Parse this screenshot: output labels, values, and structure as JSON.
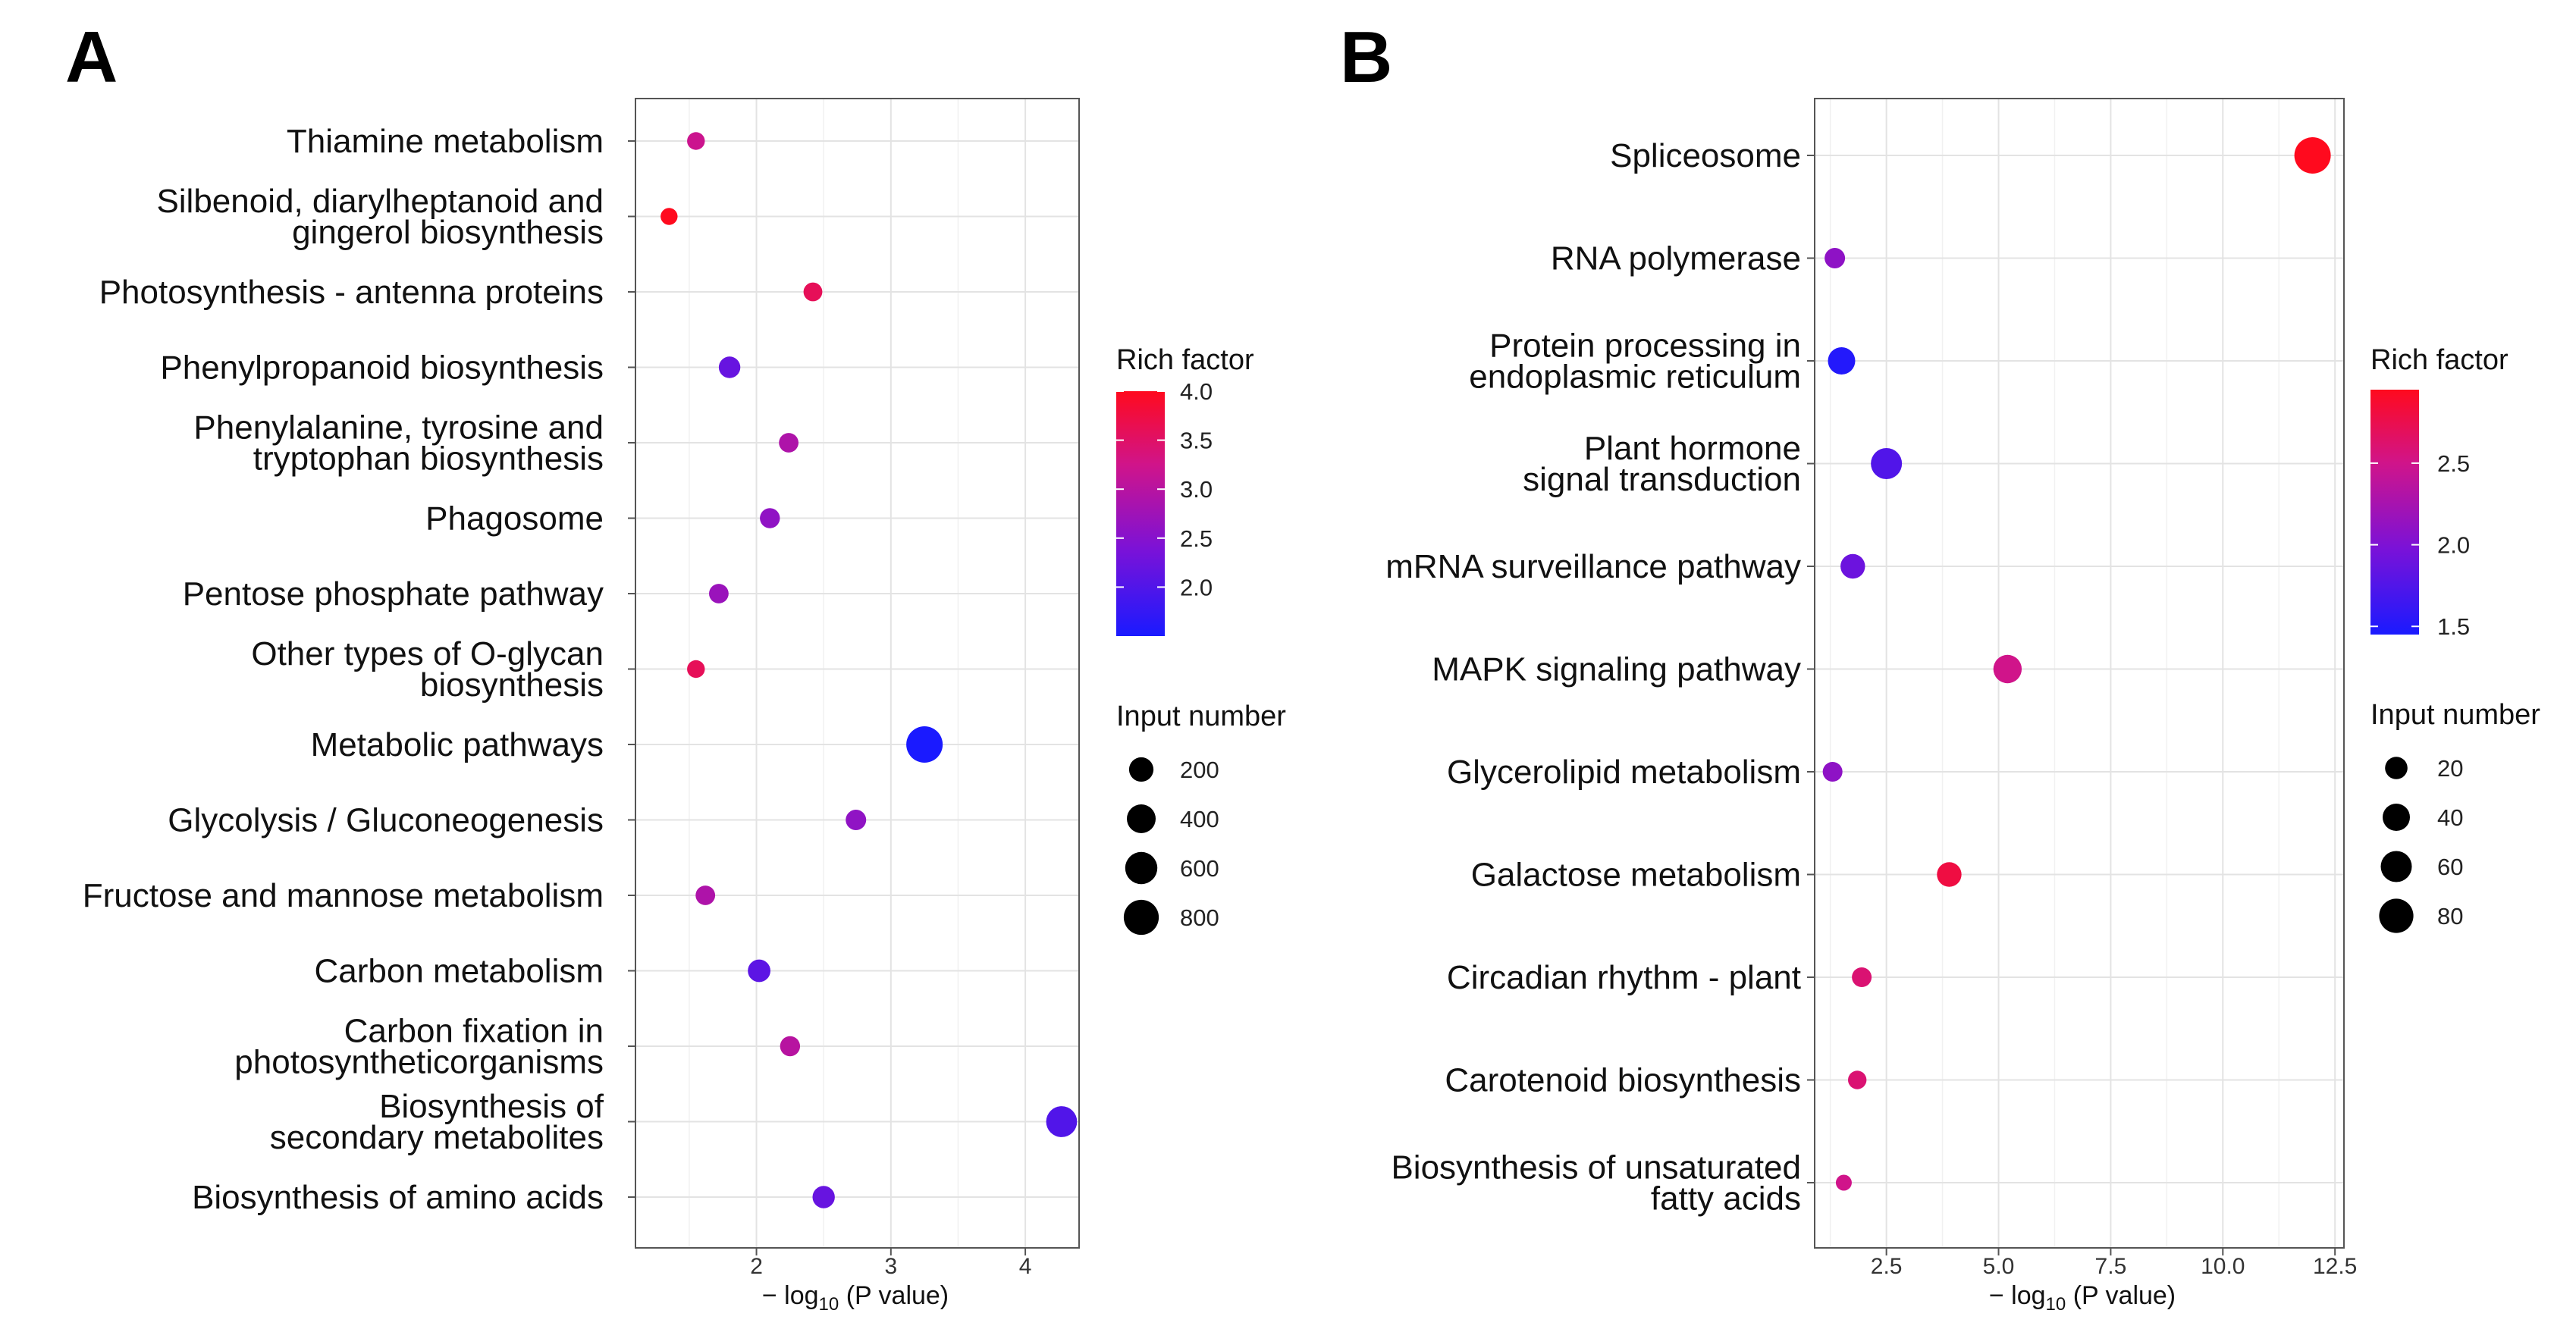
{
  "chart_data": [
    {
      "panel": "A",
      "type": "scatter",
      "xlabel": "− log10 (P value)",
      "xlim": [
        1.1,
        4.4
      ],
      "x_ticks": [
        2,
        3,
        4
      ],
      "categories": [
        "Thiamine metabolism",
        "Silbenoid, diarylheptanoid and\ngingerol biosynthesis",
        "Photosynthesis - antenna proteins",
        "Phenylpropanoid biosynthesis",
        "Phenylalanine, tyrosine and\ntryptophan biosynthesis",
        "Phagosome",
        "Pentose phosphate pathway",
        "Other types of O-glycan\nbiosynthesis",
        "Metabolic pathways",
        "Glycolysis / Gluconeogenesis",
        "Fructose and mannose metabolism",
        "Carbon metabolism",
        "Carbon fixation in\nphotosyntheticorganisms",
        "Biosynthesis of\nsecondary metabolites",
        "Biosynthesis of amino acids"
      ],
      "x": [
        1.55,
        1.35,
        2.42,
        1.8,
        2.24,
        2.1,
        1.72,
        1.55,
        3.25,
        2.74,
        1.62,
        2.02,
        2.25,
        4.27,
        2.5
      ],
      "rich_factor": [
        3.2,
        4.0,
        3.6,
        2.2,
        2.9,
        2.6,
        2.7,
        3.6,
        1.5,
        2.6,
        2.9,
        2.1,
        3.0,
        2.0,
        2.2
      ],
      "input_number": [
        30,
        20,
        45,
        110,
        60,
        70,
        60,
        30,
        900,
        80,
        60,
        140,
        70,
        520,
        130
      ],
      "color_legend": {
        "title": "Rich factor",
        "ticks": [
          "4.0",
          "3.5",
          "3.0",
          "2.5",
          "2.0"
        ],
        "tick_values": [
          4.0,
          3.5,
          3.0,
          2.5,
          2.0
        ],
        "range": [
          1.5,
          4.0
        ]
      },
      "size_legend": {
        "title": "Input number",
        "labels": [
          "200",
          "400",
          "600",
          "800"
        ],
        "values": [
          200,
          400,
          600,
          800
        ],
        "max": 900
      }
    },
    {
      "panel": "B",
      "type": "scatter",
      "xlabel": "− log10 (P value)",
      "xlim": [
        0.9,
        12.7
      ],
      "x_ticks": [
        2.5,
        5.0,
        7.5,
        10.0,
        12.5
      ],
      "x_tick_labels": [
        "2.5",
        "5.0",
        "7.5",
        "10.0",
        "12.5"
      ],
      "categories": [
        "Spliceosome",
        "RNA polymerase",
        "Protein processing in\nendoplasmic reticulum",
        "Plant hormone\nsignal transduction",
        "mRNA surveillance pathway",
        "MAPK signaling pathway",
        "Glycerolipid metabolism",
        "Galactose metabolism",
        "Circadian rhythm - plant",
        "Carotenoid biosynthesis",
        "Biosynthesis of unsaturated\nfatty acids"
      ],
      "x": [
        12.0,
        1.35,
        1.5,
        2.5,
        1.75,
        5.2,
        1.3,
        3.9,
        1.95,
        1.85,
        1.55
      ],
      "rich_factor": [
        2.95,
        2.1,
        1.5,
        1.75,
        1.9,
        2.5,
        2.1,
        2.8,
        2.6,
        2.6,
        2.5
      ],
      "input_number": [
        95,
        14,
        40,
        60,
        28,
        45,
        12,
        28,
        12,
        9,
        4
      ],
      "color_legend": {
        "title": "Rich factor",
        "ticks": [
          "2.5",
          "2.0",
          "1.5"
        ],
        "tick_values": [
          2.5,
          2.0,
          1.5
        ],
        "range": [
          1.45,
          2.95
        ]
      },
      "size_legend": {
        "title": "Input number",
        "labels": [
          "20",
          "40",
          "60",
          "80"
        ],
        "values": [
          20,
          40,
          60,
          80
        ],
        "max": 95
      }
    }
  ]
}
